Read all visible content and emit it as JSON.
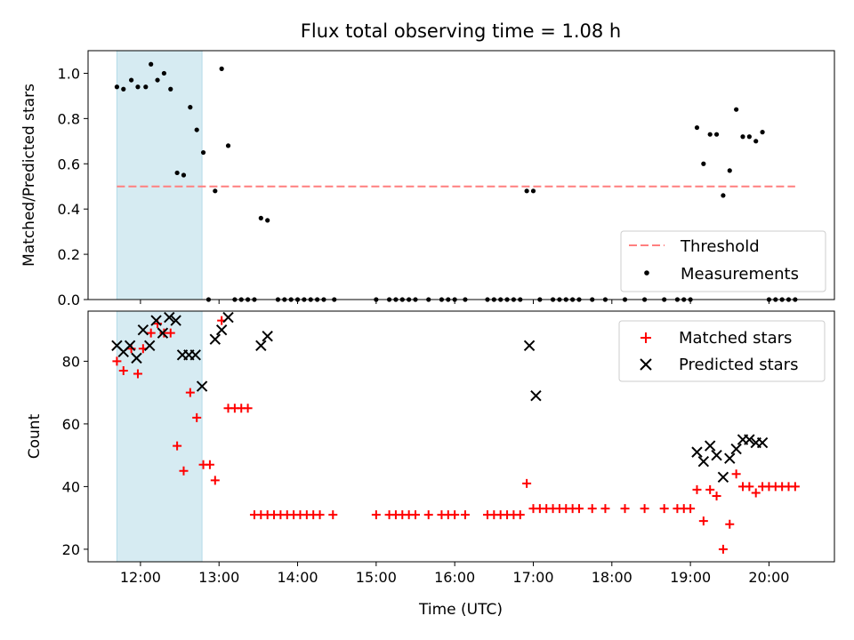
{
  "chart_data": {
    "type": "scatter",
    "title": "Flux total observing time = 1.08 h",
    "xlabel": "Time (UTC)",
    "x_ticks": [
      "12:00",
      "13:00",
      "14:00",
      "15:00",
      "16:00",
      "17:00",
      "18:00",
      "19:00",
      "20:00"
    ],
    "shaded_interval": [
      "11:42",
      "12:47"
    ],
    "shade_color": "#add8e6",
    "panels": [
      {
        "ylabel": "Matched/Predicted stars",
        "ylim": [
          0,
          1.1
        ],
        "y_ticks": [
          "0.0",
          "0.2",
          "0.4",
          "0.6",
          "0.8",
          "1.0"
        ],
        "legend_position": "lower-right",
        "series": [
          {
            "name": "Threshold",
            "kind": "dashed-line",
            "color": "#ff7f7f",
            "x_range": [
              "11:42",
              "20:20"
            ],
            "y": 0.5
          },
          {
            "name": "Measurements",
            "kind": "dot",
            "color": "#000000",
            "points": [
              [
                "11:42",
                0.94
              ],
              [
                "11:47",
                0.93
              ],
              [
                "11:53",
                0.97
              ],
              [
                "11:58",
                0.94
              ],
              [
                "12:04",
                0.94
              ],
              [
                "12:08",
                1.04
              ],
              [
                "12:13",
                0.97
              ],
              [
                "12:18",
                1.0
              ],
              [
                "12:23",
                0.93
              ],
              [
                "12:28",
                0.56
              ],
              [
                "12:33",
                0.55
              ],
              [
                "12:38",
                0.85
              ],
              [
                "12:43",
                0.75
              ],
              [
                "12:48",
                0.65
              ],
              [
                "12:52",
                0.0
              ],
              [
                "12:57",
                0.48
              ],
              [
                "13:02",
                1.02
              ],
              [
                "13:07",
                0.68
              ],
              [
                "13:12",
                0.0
              ],
              [
                "13:17",
                0.0
              ],
              [
                "13:22",
                0.0
              ],
              [
                "13:27",
                0.0
              ],
              [
                "13:32",
                0.36
              ],
              [
                "13:37",
                0.35
              ],
              [
                "13:45",
                0.0
              ],
              [
                "13:50",
                0.0
              ],
              [
                "13:55",
                0.0
              ],
              [
                "14:00",
                0.0
              ],
              [
                "14:05",
                0.0
              ],
              [
                "14:10",
                0.0
              ],
              [
                "14:15",
                0.0
              ],
              [
                "14:20",
                0.0
              ],
              [
                "14:28",
                0.0
              ],
              [
                "15:00",
                0.0
              ],
              [
                "15:10",
                0.0
              ],
              [
                "15:15",
                0.0
              ],
              [
                "15:20",
                0.0
              ],
              [
                "15:25",
                0.0
              ],
              [
                "15:30",
                0.0
              ],
              [
                "15:40",
                0.0
              ],
              [
                "15:50",
                0.0
              ],
              [
                "15:55",
                0.0
              ],
              [
                "16:00",
                0.0
              ],
              [
                "16:08",
                0.0
              ],
              [
                "16:25",
                0.0
              ],
              [
                "16:30",
                0.0
              ],
              [
                "16:35",
                0.0
              ],
              [
                "16:40",
                0.0
              ],
              [
                "16:45",
                0.0
              ],
              [
                "16:50",
                0.0
              ],
              [
                "16:55",
                0.48
              ],
              [
                "17:00",
                0.48
              ],
              [
                "17:05",
                0.0
              ],
              [
                "17:15",
                0.0
              ],
              [
                "17:20",
                0.0
              ],
              [
                "17:25",
                0.0
              ],
              [
                "17:30",
                0.0
              ],
              [
                "17:35",
                0.0
              ],
              [
                "17:45",
                0.0
              ],
              [
                "17:55",
                0.0
              ],
              [
                "18:10",
                0.0
              ],
              [
                "18:25",
                0.0
              ],
              [
                "18:40",
                0.0
              ],
              [
                "18:50",
                0.0
              ],
              [
                "18:55",
                0.0
              ],
              [
                "19:00",
                0.0
              ],
              [
                "19:05",
                0.76
              ],
              [
                "19:10",
                0.6
              ],
              [
                "19:15",
                0.73
              ],
              [
                "19:20",
                0.73
              ],
              [
                "19:25",
                0.46
              ],
              [
                "19:30",
                0.57
              ],
              [
                "19:35",
                0.84
              ],
              [
                "19:40",
                0.72
              ],
              [
                "19:45",
                0.72
              ],
              [
                "19:50",
                0.7
              ],
              [
                "19:55",
                0.74
              ],
              [
                "20:00",
                0.0
              ],
              [
                "20:05",
                0.0
              ],
              [
                "20:10",
                0.0
              ],
              [
                "20:15",
                0.0
              ],
              [
                "20:20",
                0.0
              ]
            ]
          }
        ]
      },
      {
        "ylabel": "Count",
        "ylim": [
          16,
          96
        ],
        "y_ticks": [
          "20",
          "40",
          "60",
          "80"
        ],
        "legend_position": "upper-right",
        "series": [
          {
            "name": "Matched stars",
            "marker": "plus",
            "color": "#ff0000",
            "points": [
              [
                "11:42",
                80
              ],
              [
                "11:47",
                77
              ],
              [
                "11:53",
                84
              ],
              [
                "11:58",
                76
              ],
              [
                "12:02",
                84
              ],
              [
                "12:08",
                89
              ],
              [
                "12:13",
                92
              ],
              [
                "12:18",
                89
              ],
              [
                "12:23",
                89
              ],
              [
                "12:28",
                53
              ],
              [
                "12:33",
                45
              ],
              [
                "12:38",
                70
              ],
              [
                "12:43",
                62
              ],
              [
                "12:48",
                47
              ],
              [
                "12:53",
                47
              ],
              [
                "12:57",
                42
              ],
              [
                "13:02",
                93
              ],
              [
                "13:07",
                65
              ],
              [
                "13:12",
                65
              ],
              [
                "13:17",
                65
              ],
              [
                "13:22",
                65
              ],
              [
                "13:27",
                31
              ],
              [
                "13:32",
                31
              ],
              [
                "13:37",
                31
              ],
              [
                "13:42",
                31
              ],
              [
                "13:47",
                31
              ],
              [
                "13:52",
                31
              ],
              [
                "13:57",
                31
              ],
              [
                "14:02",
                31
              ],
              [
                "14:07",
                31
              ],
              [
                "14:12",
                31
              ],
              [
                "14:17",
                31
              ],
              [
                "14:27",
                31
              ],
              [
                "15:00",
                31
              ],
              [
                "15:10",
                31
              ],
              [
                "15:15",
                31
              ],
              [
                "15:20",
                31
              ],
              [
                "15:25",
                31
              ],
              [
                "15:30",
                31
              ],
              [
                "15:40",
                31
              ],
              [
                "15:50",
                31
              ],
              [
                "15:55",
                31
              ],
              [
                "16:00",
                31
              ],
              [
                "16:08",
                31
              ],
              [
                "16:25",
                31
              ],
              [
                "16:30",
                31
              ],
              [
                "16:35",
                31
              ],
              [
                "16:40",
                31
              ],
              [
                "16:45",
                31
              ],
              [
                "16:50",
                31
              ],
              [
                "16:55",
                41
              ],
              [
                "17:00",
                33
              ],
              [
                "17:05",
                33
              ],
              [
                "17:10",
                33
              ],
              [
                "17:15",
                33
              ],
              [
                "17:20",
                33
              ],
              [
                "17:25",
                33
              ],
              [
                "17:30",
                33
              ],
              [
                "17:35",
                33
              ],
              [
                "17:45",
                33
              ],
              [
                "17:55",
                33
              ],
              [
                "18:10",
                33
              ],
              [
                "18:25",
                33
              ],
              [
                "18:40",
                33
              ],
              [
                "18:50",
                33
              ],
              [
                "18:55",
                33
              ],
              [
                "19:00",
                33
              ],
              [
                "19:05",
                39
              ],
              [
                "19:10",
                29
              ],
              [
                "19:15",
                39
              ],
              [
                "19:20",
                37
              ],
              [
                "19:25",
                20
              ],
              [
                "19:30",
                28
              ],
              [
                "19:35",
                44
              ],
              [
                "19:40",
                40
              ],
              [
                "19:45",
                40
              ],
              [
                "19:50",
                38
              ],
              [
                "19:55",
                40
              ],
              [
                "20:00",
                40
              ],
              [
                "20:05",
                40
              ],
              [
                "20:10",
                40
              ],
              [
                "20:15",
                40
              ],
              [
                "20:20",
                40
              ]
            ]
          },
          {
            "name": "Predicted stars",
            "marker": "x",
            "color": "#000000",
            "points": [
              [
                "11:42",
                85
              ],
              [
                "11:47",
                83
              ],
              [
                "11:52",
                85
              ],
              [
                "11:57",
                81
              ],
              [
                "12:02",
                90
              ],
              [
                "12:07",
                85
              ],
              [
                "12:12",
                93
              ],
              [
                "12:17",
                89
              ],
              [
                "12:22",
                94
              ],
              [
                "12:27",
                93
              ],
              [
                "12:32",
                82
              ],
              [
                "12:37",
                82
              ],
              [
                "12:42",
                82
              ],
              [
                "12:47",
                72
              ],
              [
                "12:57",
                87
              ],
              [
                "13:02",
                90
              ],
              [
                "13:07",
                94
              ],
              [
                "13:32",
                85
              ],
              [
                "13:37",
                88
              ],
              [
                "16:57",
                85
              ],
              [
                "17:02",
                69
              ],
              [
                "19:05",
                51
              ],
              [
                "19:10",
                48
              ],
              [
                "19:15",
                53
              ],
              [
                "19:20",
                50
              ],
              [
                "19:25",
                43
              ],
              [
                "19:30",
                49
              ],
              [
                "19:35",
                52
              ],
              [
                "19:40",
                55
              ],
              [
                "19:45",
                55
              ],
              [
                "19:50",
                54
              ],
              [
                "19:55",
                54
              ]
            ]
          }
        ]
      }
    ]
  }
}
